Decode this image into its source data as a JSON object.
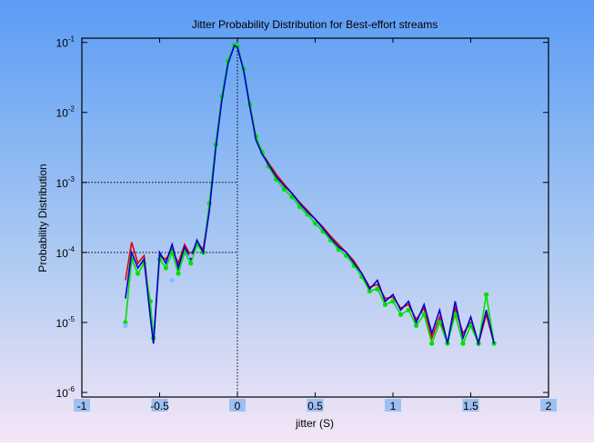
{
  "chart_data": {
    "type": "line",
    "title": "Jitter Probability Distribution for Best-effort streams",
    "xlabel": "jitter (S)",
    "ylabel": "Probability Distribution",
    "log_y": true,
    "xlim": [
      -1,
      2
    ],
    "ylim": [
      8.6e-07,
      0.115
    ],
    "xticks": [
      -1,
      -0.5,
      0,
      0.5,
      1,
      1.5,
      2
    ],
    "yticks": [
      {
        "value": 0.1,
        "label": "10",
        "exponent": "-1"
      },
      {
        "value": 0.01,
        "label": "10",
        "exponent": "-2"
      },
      {
        "value": 0.001,
        "label": "10",
        "exponent": "-3"
      },
      {
        "value": 0.0001,
        "label": "10",
        "exponent": "-4"
      },
      {
        "value": 1e-05,
        "label": "10",
        "exponent": "-5"
      },
      {
        "value": 1e-06,
        "label": "10",
        "exponent": "-6"
      }
    ],
    "reference_lines": {
      "x": [
        0
      ],
      "y": [
        0.001,
        0.0001
      ]
    },
    "x": [
      -0.72,
      -0.68,
      -0.64,
      -0.6,
      -0.56,
      -0.54,
      -0.5,
      -0.46,
      -0.42,
      -0.38,
      -0.34,
      -0.3,
      -0.26,
      -0.22,
      -0.18,
      -0.14,
      -0.1,
      -0.06,
      -0.02,
      0,
      0.04,
      0.08,
      0.12,
      0.16,
      0.2,
      0.25,
      0.3,
      0.35,
      0.4,
      0.45,
      0.5,
      0.55,
      0.6,
      0.65,
      0.7,
      0.75,
      0.8,
      0.85,
      0.9,
      0.95,
      1.0,
      1.05,
      1.1,
      1.15,
      1.2,
      1.25,
      1.3,
      1.35,
      1.4,
      1.45,
      1.5,
      1.55,
      1.6,
      1.65
    ],
    "series": [
      {
        "color": "#e00000",
        "marker": false,
        "values": [
          4e-05,
          0.00014,
          7e-05,
          9e-05,
          1.5e-05,
          5e-06,
          9e-05,
          8e-05,
          0.00011,
          7e-05,
          0.00013,
          9e-05,
          0.00014,
          0.00011,
          0.00045,
          0.0032,
          0.016,
          0.052,
          0.09,
          0.087,
          0.041,
          0.012,
          0.0042,
          0.0026,
          0.0019,
          0.0013,
          0.00095,
          0.0007,
          0.00052,
          0.0004,
          0.0003,
          0.00023,
          0.00017,
          0.00013,
          0.0001,
          7.5e-05,
          5e-05,
          3.2e-05,
          3.5e-05,
          2.2e-05,
          2.3e-05,
          1.6e-05,
          1.8e-05,
          1.1e-05,
          1.6e-05,
          6e-06,
          1.2e-05,
          5e-06,
          1.6e-05,
          7e-06,
          1e-05,
          5e-06,
          1.3e-05,
          5e-06
        ]
      },
      {
        "color": "#00e000",
        "marker": true,
        "values": [
          1e-05,
          8e-05,
          5e-05,
          7e-05,
          2e-05,
          6e-06,
          8e-05,
          6e-05,
          0.0001,
          5e-05,
          0.0001,
          7e-05,
          0.00013,
          0.0001,
          0.0005,
          0.0035,
          0.017,
          0.055,
          0.092,
          0.088,
          0.042,
          0.013,
          0.0045,
          0.0027,
          0.0017,
          0.0011,
          0.0008,
          0.00062,
          0.00045,
          0.00035,
          0.00026,
          0.0002,
          0.00015,
          0.00011,
          9e-05,
          6.5e-05,
          4.5e-05,
          2.8e-05,
          3e-05,
          1.8e-05,
          2e-05,
          1.3e-05,
          1.5e-05,
          9e-06,
          1.3e-05,
          5e-06,
          1e-05,
          5e-06,
          1.3e-05,
          5e-06,
          9e-06,
          5e-06,
          2.5e-05,
          5e-06
        ]
      },
      {
        "color": "#0000d0",
        "marker": false,
        "values": [
          2.2e-05,
          0.0001,
          6e-05,
          8e-05,
          1.2e-05,
          5e-06,
          0.0001,
          7e-05,
          0.00013,
          6e-05,
          0.00012,
          8e-05,
          0.00015,
          0.0001,
          0.0004,
          0.003,
          0.015,
          0.05,
          0.09,
          0.085,
          0.04,
          0.012,
          0.004,
          0.0025,
          0.0018,
          0.0012,
          0.0009,
          0.0007,
          0.0005,
          0.00038,
          0.0003,
          0.00022,
          0.00016,
          0.00012,
          0.0001,
          7e-05,
          5e-05,
          3e-05,
          4e-05,
          2e-05,
          2.5e-05,
          1.5e-05,
          2e-05,
          1e-05,
          1.8e-05,
          7e-06,
          1.5e-05,
          5e-06,
          2e-05,
          6e-06,
          1.2e-05,
          5e-06,
          1.5e-05,
          5e-06
        ]
      },
      {
        "color": "#88bbff",
        "marker": true,
        "values": [
          9e-06,
          null,
          null,
          null,
          null,
          null,
          null,
          null,
          4e-05,
          null,
          null,
          9e-05,
          null,
          null,
          null,
          null,
          null,
          null,
          null,
          null,
          null,
          null,
          null,
          null,
          null,
          null,
          null,
          null,
          null,
          null,
          null,
          null,
          null,
          null,
          null,
          null,
          null,
          null,
          null,
          null,
          null,
          null,
          null,
          null,
          null,
          null,
          null,
          null,
          null,
          null,
          null,
          null,
          null,
          null
        ]
      }
    ]
  }
}
